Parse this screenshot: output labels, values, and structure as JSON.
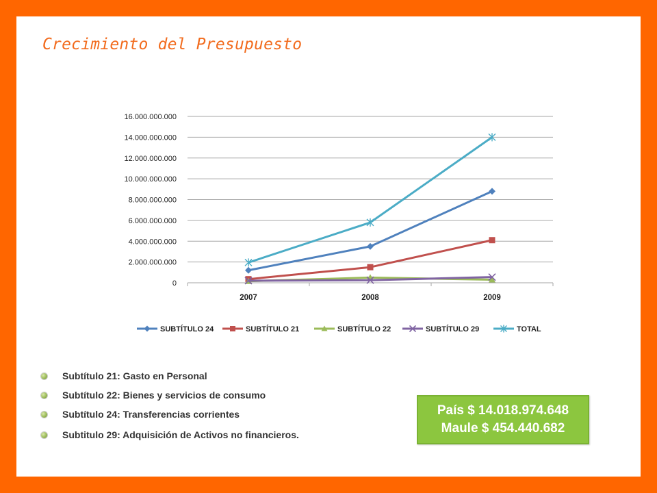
{
  "slide": {
    "title": "Crecimiento del Presupuesto"
  },
  "colors": {
    "frame": "#ff6600",
    "title": "#f26b1d",
    "box": "#8cc63f"
  },
  "chart_data": {
    "type": "line",
    "x": [
      "2007",
      "2008",
      "2009"
    ],
    "y_ticks": [
      "0",
      "2.000.000.000",
      "4.000.000.000",
      "6.000.000.000",
      "8.000.000.000",
      "10.000.000.000",
      "12.000.000.000",
      "14.000.000.000",
      "16.000.000.000"
    ],
    "ylim": [
      0,
      16000000000
    ],
    "grid": true,
    "legend_position": "bottom",
    "series": [
      {
        "name": "SUBTÍTULO 24",
        "color": "#4f81bd",
        "marker": "diamond",
        "values": [
          1200000000,
          3500000000,
          8800000000
        ]
      },
      {
        "name": "SUBTÍTULO  21",
        "color": "#c0504d",
        "marker": "square",
        "values": [
          350000000,
          1500000000,
          4100000000
        ]
      },
      {
        "name": "SUBTÍTULO  22",
        "color": "#9bbb59",
        "marker": "triangle",
        "values": [
          150000000,
          500000000,
          300000000
        ]
      },
      {
        "name": "SUBTÍTULO  29",
        "color": "#8064a2",
        "marker": "x",
        "values": [
          200000000,
          250000000,
          550000000
        ]
      },
      {
        "name": "TOTAL",
        "color": "#4bacc6",
        "marker": "star",
        "values": [
          1950000000,
          5800000000,
          14000000000
        ]
      }
    ]
  },
  "bullets": [
    "Subtítulo 21: Gasto en Personal",
    "Subtítulo 22: Bienes y servicios de consumo",
    "Subtítulo 24: Transferencias corrientes",
    "Subtitulo 29: Adquisición de Activos no financieros."
  ],
  "infobox": {
    "line1": "País $ 14.018.974.648",
    "line2": "Maule $ 454.440.682"
  }
}
